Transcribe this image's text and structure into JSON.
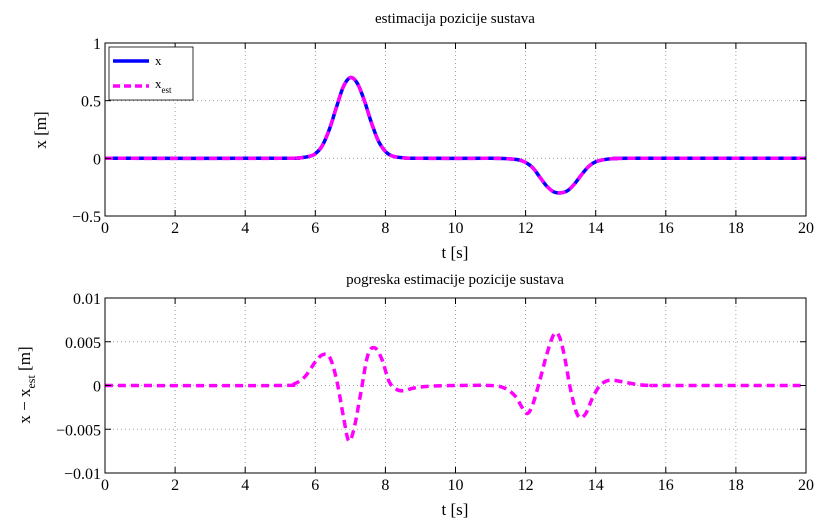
{
  "chart_data": [
    {
      "type": "line",
      "title": "estimacija pozicije sustava",
      "xlabel": "t [s]",
      "ylabel": "x [m]",
      "xlim": [
        0,
        20
      ],
      "ylim": [
        -0.5,
        1
      ],
      "xticks": [
        0,
        2,
        4,
        6,
        8,
        10,
        12,
        14,
        16,
        18,
        20
      ],
      "yticks": [
        -0.5,
        0,
        0.5,
        1
      ],
      "ytick_labels": [
        "−0.5",
        "0",
        "0.5",
        "1"
      ],
      "grid": true,
      "legend": "top-left",
      "series": [
        {
          "name": "x",
          "color": "#0000ff",
          "style": "solid",
          "x": [
            0,
            5.0,
            5.5,
            5.8,
            6.0,
            6.2,
            6.4,
            6.6,
            6.8,
            7.0,
            7.2,
            7.4,
            7.6,
            7.8,
            8.0,
            8.2,
            8.5,
            9.0,
            11.0,
            11.5,
            11.8,
            12.0,
            12.2,
            12.4,
            12.6,
            12.8,
            13.0,
            13.2,
            13.4,
            13.6,
            13.8,
            14.0,
            14.3,
            14.6,
            15.0,
            20
          ],
          "y": [
            0,
            0,
            0.003,
            0.015,
            0.04,
            0.11,
            0.25,
            0.44,
            0.62,
            0.7,
            0.65,
            0.5,
            0.31,
            0.15,
            0.06,
            0.02,
            0.005,
            0,
            0,
            -0.004,
            -0.014,
            -0.035,
            -0.08,
            -0.16,
            -0.24,
            -0.29,
            -0.3,
            -0.28,
            -0.22,
            -0.14,
            -0.07,
            -0.03,
            -0.008,
            -0.002,
            0,
            0
          ]
        },
        {
          "name": "x_est",
          "label_main": "x",
          "label_sub": "est",
          "color": "#ff00ff",
          "style": "dashed",
          "x": [
            0,
            5.0,
            5.5,
            5.8,
            6.0,
            6.2,
            6.4,
            6.6,
            6.8,
            7.0,
            7.2,
            7.4,
            7.6,
            7.8,
            8.0,
            8.2,
            8.5,
            9.0,
            11.0,
            11.5,
            11.8,
            12.0,
            12.2,
            12.4,
            12.6,
            12.8,
            13.0,
            13.2,
            13.4,
            13.6,
            13.8,
            14.0,
            14.3,
            14.6,
            15.0,
            20
          ],
          "y": [
            0,
            0,
            0.003,
            0.015,
            0.04,
            0.11,
            0.25,
            0.44,
            0.62,
            0.7,
            0.65,
            0.5,
            0.31,
            0.15,
            0.06,
            0.02,
            0.005,
            0,
            0,
            -0.004,
            -0.014,
            -0.035,
            -0.08,
            -0.16,
            -0.24,
            -0.29,
            -0.3,
            -0.28,
            -0.22,
            -0.14,
            -0.07,
            -0.03,
            -0.008,
            -0.002,
            0,
            0
          ]
        }
      ]
    },
    {
      "type": "line",
      "title": "pogreska estimacije pozicije sustava",
      "xlabel": "t [s]",
      "ylabel_main": "x − x",
      "ylabel_sub": "est",
      "ylabel_unit": " [m]",
      "xlim": [
        0,
        20
      ],
      "ylim": [
        -0.01,
        0.01
      ],
      "xticks": [
        0,
        2,
        4,
        6,
        8,
        10,
        12,
        14,
        16,
        18,
        20
      ],
      "yticks": [
        -0.01,
        -0.005,
        0,
        0.005,
        0.01
      ],
      "ytick_labels": [
        "−0.01",
        "−0.005",
        "0",
        "0.005",
        "0.01"
      ],
      "grid": true,
      "series": [
        {
          "color": "#ff00ff",
          "style": "dashed",
          "x": [
            0,
            5.0,
            5.4,
            5.7,
            6.0,
            6.2,
            6.4,
            6.6,
            6.8,
            6.95,
            7.1,
            7.3,
            7.5,
            7.7,
            7.9,
            8.1,
            8.3,
            8.5,
            8.8,
            9.2,
            10.0,
            11.0,
            11.4,
            11.7,
            11.9,
            12.05,
            12.2,
            12.4,
            12.6,
            12.8,
            12.95,
            13.1,
            13.3,
            13.5,
            13.7,
            13.9,
            14.1,
            14.3,
            14.5,
            14.8,
            15.2,
            15.6,
            16.0,
            20
          ],
          "y": [
            0,
            0,
            0.0002,
            0.001,
            0.0027,
            0.0035,
            0.0033,
            0.0008,
            -0.0035,
            -0.0063,
            -0.005,
            -0.0008,
            0.0035,
            0.0043,
            0.003,
            0.0005,
            -0.0004,
            -0.0006,
            -0.0003,
            -0.0001,
            0,
            0,
            -0.0003,
            -0.0012,
            -0.0025,
            -0.0032,
            -0.0022,
            0.0005,
            0.0035,
            0.0058,
            0.0057,
            0.0035,
            -0.0008,
            -0.0035,
            -0.0033,
            -0.0015,
            -0.0001,
            0.0005,
            0.0006,
            0.0004,
            0.0001,
            0,
            0,
            0
          ]
        }
      ]
    }
  ]
}
